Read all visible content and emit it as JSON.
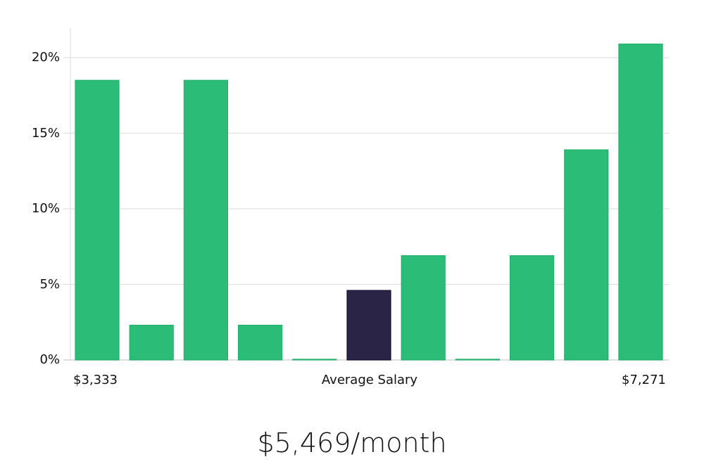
{
  "chart_data": {
    "type": "bar",
    "title": "",
    "xlabel": "Average Salary",
    "ylabel": "",
    "ylim": [
      0,
      22
    ],
    "yticks": [
      "0%",
      "5%",
      "10%",
      "15%",
      "20%"
    ],
    "ytick_values": [
      0,
      5,
      10,
      15,
      20
    ],
    "grid": true,
    "x_range_labels": {
      "min": "$3,333",
      "max": "$7,271"
    },
    "categories": [
      "1",
      "2",
      "3",
      "4",
      "5",
      "6",
      "7",
      "8",
      "9",
      "10",
      "11"
    ],
    "values": [
      18.5,
      2.3,
      18.5,
      2.3,
      0,
      4.6,
      6.9,
      0,
      6.9,
      13.9,
      20.9
    ],
    "highlight_index": 5,
    "colors": {
      "bar": "#2bbd77",
      "highlight": "#2a2547",
      "grid": "#e0e0e0",
      "axis": "#cccccc"
    }
  },
  "labels": {
    "x_min": "$3,333",
    "x_center": "Average Salary",
    "x_max": "$7,271",
    "summary": "$5,469/month"
  }
}
